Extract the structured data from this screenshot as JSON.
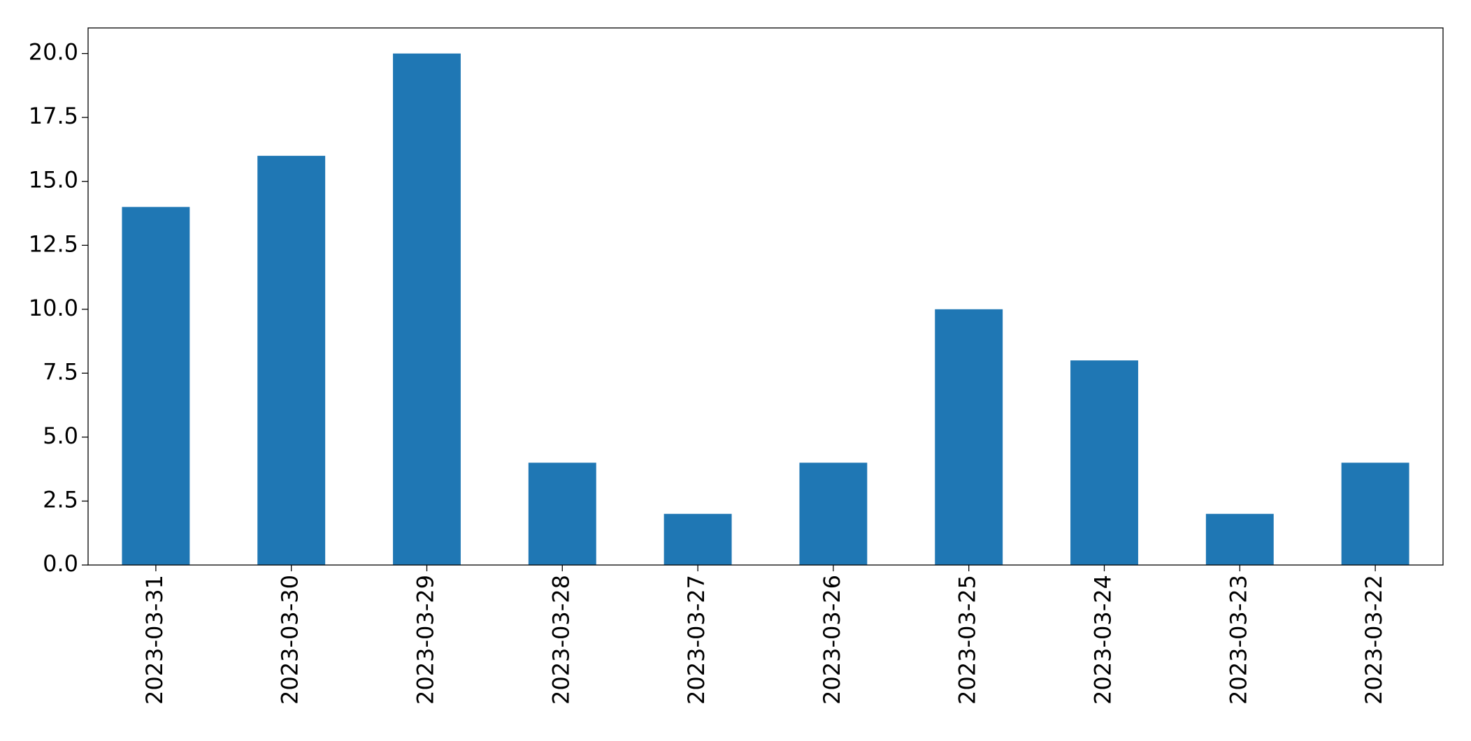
{
  "chart_data": {
    "type": "bar",
    "categories": [
      "2023-03-31",
      "2023-03-30",
      "2023-03-29",
      "2023-03-28",
      "2023-03-27",
      "2023-03-26",
      "2023-03-25",
      "2023-03-24",
      "2023-03-23",
      "2023-03-22"
    ],
    "values": [
      14,
      16,
      20,
      4,
      2,
      4,
      10,
      8,
      2,
      4
    ],
    "color": "#1f77b4",
    "ylim": [
      0,
      21
    ],
    "yticks": [
      {
        "value": 0,
        "label": "0.0"
      },
      2.5,
      {
        "value": 5,
        "label": "5.0"
      },
      7.5,
      {
        "value": 10,
        "label": "10.0"
      },
      12.5,
      {
        "value": 15,
        "label": "15.0"
      },
      17.5,
      {
        "value": 20,
        "label": "20.0"
      }
    ],
    "grid": false
  }
}
